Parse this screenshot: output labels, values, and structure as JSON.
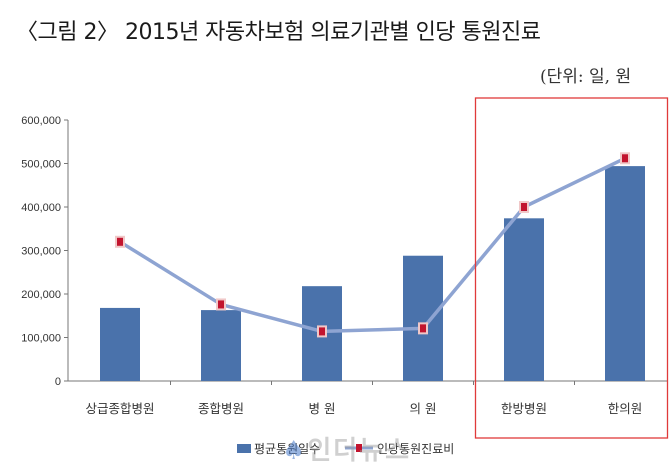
{
  "title": "〈그림 2〉 2015년 자동차보험 의료기관별 인당 통원진료",
  "unit": "(단위: 일, 원",
  "watermark": "인더뉴스",
  "chart_data": {
    "type": "bar",
    "categories": [
      "상급종합병원",
      "종합병원",
      "병 원",
      "의 원",
      "한방병원",
      "한의원"
    ],
    "series": [
      {
        "name": "평균통원일수",
        "kind": "bar",
        "values": [
          168000,
          163000,
          218000,
          288000,
          374000,
          494000
        ]
      },
      {
        "name": "인당통원진료비",
        "kind": "line",
        "values": [
          320000,
          176000,
          114000,
          121000,
          400000,
          512000
        ]
      }
    ],
    "yticks": [
      "0",
      "100,000",
      "200,000",
      "300,000",
      "400,000",
      "500,000",
      "600,000"
    ],
    "ylim": [
      0,
      600000
    ],
    "grid": false,
    "legend": "bottom",
    "highlight_box": {
      "from_category": 4,
      "to_category": 5,
      "color": "#e03a3a"
    },
    "colors": {
      "bar": "#4a72ab",
      "line": "#8ea4d2",
      "marker": "#c2142e",
      "marker_border": "#f0c8c8"
    }
  }
}
